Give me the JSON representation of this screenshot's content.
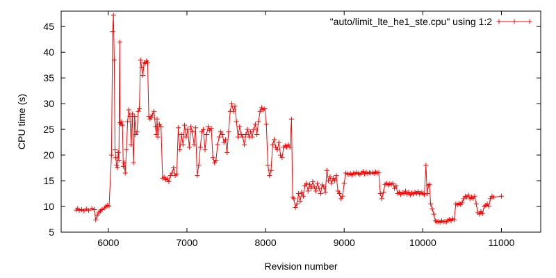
{
  "chart_data": {
    "type": "line",
    "title": "",
    "xlabel": "Revision number",
    "ylabel": "CPU time (s)",
    "xlim": [
      5400,
      11500
    ],
    "ylim": [
      5,
      48
    ],
    "xticks": [
      6000,
      7000,
      8000,
      9000,
      10000,
      11000
    ],
    "yticks": [
      5,
      10,
      15,
      20,
      25,
      30,
      35,
      40,
      45
    ],
    "grid": false,
    "legend_position": "top-right",
    "series": [
      {
        "name": "\"auto/limit_lte_he1_ste.cpu\" using 1:2",
        "color": "#ff0000",
        "marker": "plus",
        "points": [
          [
            5590,
            9.3
          ],
          [
            5610,
            9.6
          ],
          [
            5630,
            9.2
          ],
          [
            5660,
            9.4
          ],
          [
            5690,
            9.1
          ],
          [
            5720,
            9.5
          ],
          [
            5750,
            9.2
          ],
          [
            5790,
            9.6
          ],
          [
            5820,
            9.4
          ],
          [
            5840,
            7.4
          ],
          [
            5860,
            8.3
          ],
          [
            5880,
            8.9
          ],
          [
            5900,
            9.1
          ],
          [
            5920,
            9.4
          ],
          [
            5950,
            9.7
          ],
          [
            5970,
            10.0
          ],
          [
            5990,
            10.2
          ],
          [
            6010,
            10.1
          ],
          [
            6040,
            20.0
          ],
          [
            6055,
            44.0
          ],
          [
            6065,
            47.2
          ],
          [
            6075,
            38.5
          ],
          [
            6085,
            21.0
          ],
          [
            6095,
            19.5
          ],
          [
            6105,
            18.0
          ],
          [
            6115,
            17.5
          ],
          [
            6125,
            20.5
          ],
          [
            6135,
            19.0
          ],
          [
            6145,
            42.0
          ],
          [
            6150,
            26.3
          ],
          [
            6160,
            26.0
          ],
          [
            6170,
            26.5
          ],
          [
            6180,
            25.8
          ],
          [
            6190,
            17.8
          ],
          [
            6200,
            18.5
          ],
          [
            6215,
            16.5
          ],
          [
            6230,
            21.0
          ],
          [
            6245,
            26.5
          ],
          [
            6260,
            28.8
          ],
          [
            6275,
            27.5
          ],
          [
            6290,
            22.0
          ],
          [
            6305,
            28.0
          ],
          [
            6320,
            18.5
          ],
          [
            6335,
            27.5
          ],
          [
            6350,
            24.0
          ],
          [
            6365,
            24.5
          ],
          [
            6380,
            28.5
          ],
          [
            6395,
            29.0
          ],
          [
            6410,
            38.5
          ],
          [
            6425,
            37.0
          ],
          [
            6440,
            35.5
          ],
          [
            6455,
            38.0
          ],
          [
            6470,
            37.8
          ],
          [
            6485,
            38.3
          ],
          [
            6500,
            38.0
          ],
          [
            6515,
            27.5
          ],
          [
            6530,
            27.0
          ],
          [
            6545,
            27.3
          ],
          [
            6560,
            27.8
          ],
          [
            6580,
            28.5
          ],
          [
            6600,
            25.5
          ],
          [
            6610,
            24.0
          ],
          [
            6620,
            27.0
          ],
          [
            6630,
            23.5
          ],
          [
            6650,
            26.0
          ],
          [
            6670,
            25.5
          ],
          [
            6690,
            15.5
          ],
          [
            6710,
            15.7
          ],
          [
            6730,
            15.2
          ],
          [
            6750,
            15.4
          ],
          [
            6770,
            14.8
          ],
          [
            6790,
            16.0
          ],
          [
            6810,
            16.5
          ],
          [
            6830,
            17.5
          ],
          [
            6850,
            16.0
          ],
          [
            6870,
            16.3
          ],
          [
            6890,
            25.3
          ],
          [
            6910,
            21.0
          ],
          [
            6930,
            24.0
          ],
          [
            6950,
            22.0
          ],
          [
            6970,
            25.8
          ],
          [
            6990,
            23.5
          ],
          [
            7010,
            25.0
          ],
          [
            7030,
            21.5
          ],
          [
            7050,
            25.5
          ],
          [
            7070,
            24.5
          ],
          [
            7090,
            22.0
          ],
          [
            7110,
            25.3
          ],
          [
            7130,
            16.0
          ],
          [
            7150,
            18.0
          ],
          [
            7170,
            21.5
          ],
          [
            7190,
            24.5
          ],
          [
            7210,
            25.0
          ],
          [
            7230,
            21.0
          ],
          [
            7250,
            24.0
          ],
          [
            7270,
            25.5
          ],
          [
            7290,
            24.8
          ],
          [
            7310,
            25.2
          ],
          [
            7330,
            19.5
          ],
          [
            7350,
            18.5
          ],
          [
            7370,
            19.0
          ],
          [
            7390,
            22.0
          ],
          [
            7410,
            23.5
          ],
          [
            7430,
            24.5
          ],
          [
            7450,
            24.0
          ],
          [
            7470,
            22.5
          ],
          [
            7490,
            23.0
          ],
          [
            7510,
            20.5
          ],
          [
            7530,
            24.5
          ],
          [
            7550,
            28.5
          ],
          [
            7570,
            30.0
          ],
          [
            7590,
            28.5
          ],
          [
            7610,
            29.5
          ],
          [
            7630,
            26.5
          ],
          [
            7650,
            23.5
          ],
          [
            7670,
            25.5
          ],
          [
            7690,
            24.0
          ],
          [
            7710,
            23.5
          ],
          [
            7730,
            22.0
          ],
          [
            7750,
            24.0
          ],
          [
            7770,
            25.0
          ],
          [
            7790,
            23.5
          ],
          [
            7810,
            24.5
          ],
          [
            7830,
            23.5
          ],
          [
            7850,
            25.0
          ],
          [
            7870,
            26.0
          ],
          [
            7890,
            24.0
          ],
          [
            7910,
            26.5
          ],
          [
            7930,
            28.5
          ],
          [
            7950,
            29.2
          ],
          [
            7970,
            28.8
          ],
          [
            7990,
            29.0
          ],
          [
            8010,
            26.0
          ],
          [
            8030,
            18.0
          ],
          [
            8050,
            16.0
          ],
          [
            8070,
            17.0
          ],
          [
            8090,
            22.0
          ],
          [
            8110,
            23.0
          ],
          [
            8130,
            21.5
          ],
          [
            8150,
            21.0
          ],
          [
            8170,
            22.5
          ],
          [
            8190,
            20.0
          ],
          [
            8210,
            19.5
          ],
          [
            8230,
            21.5
          ],
          [
            8250,
            21.8
          ],
          [
            8270,
            21.5
          ],
          [
            8290,
            22.0
          ],
          [
            8310,
            21.5
          ],
          [
            8330,
            27.0
          ],
          [
            8345,
            11.8
          ],
          [
            8360,
            11.5
          ],
          [
            8380,
            9.8
          ],
          [
            8400,
            10.5
          ],
          [
            8420,
            12.5
          ],
          [
            8440,
            11.0
          ],
          [
            8460,
            12.8
          ],
          [
            8480,
            12.0
          ],
          [
            8500,
            14.0
          ],
          [
            8520,
            14.5
          ],
          [
            8540,
            13.0
          ],
          [
            8560,
            14.3
          ],
          [
            8580,
            13.5
          ],
          [
            8600,
            14.8
          ],
          [
            8620,
            13.8
          ],
          [
            8640,
            13.0
          ],
          [
            8660,
            14.5
          ],
          [
            8680,
            13.5
          ],
          [
            8700,
            12.5
          ],
          [
            8720,
            14.2
          ],
          [
            8740,
            13.8
          ],
          [
            8760,
            12.8
          ],
          [
            8780,
            17.0
          ],
          [
            8800,
            15.0
          ],
          [
            8820,
            15.8
          ],
          [
            8840,
            14.5
          ],
          [
            8860,
            15.5
          ],
          [
            8880,
            15.0
          ],
          [
            8900,
            16.0
          ],
          [
            8920,
            13.0
          ],
          [
            8940,
            12.5
          ],
          [
            8960,
            11.5
          ],
          [
            8980,
            12.0
          ],
          [
            9000,
            14.5
          ],
          [
            9020,
            16.5
          ],
          [
            9040,
            16.3
          ],
          [
            9060,
            16.2
          ],
          [
            9080,
            16.4
          ],
          [
            9100,
            16.1
          ],
          [
            9120,
            16.5
          ],
          [
            9140,
            16.3
          ],
          [
            9160,
            16.6
          ],
          [
            9180,
            16.4
          ],
          [
            9200,
            16.2
          ],
          [
            9220,
            16.5
          ],
          [
            9240,
            16.8
          ],
          [
            9260,
            16.3
          ],
          [
            9280,
            16.7
          ],
          [
            9300,
            16.4
          ],
          [
            9320,
            16.6
          ],
          [
            9340,
            16.5
          ],
          [
            9360,
            16.6
          ],
          [
            9380,
            16.4
          ],
          [
            9400,
            16.7
          ],
          [
            9420,
            16.5
          ],
          [
            9440,
            16.6
          ],
          [
            9460,
            12.5
          ],
          [
            9480,
            11.5
          ],
          [
            9500,
            12.8
          ],
          [
            9520,
            14.3
          ],
          [
            9540,
            14.5
          ],
          [
            9560,
            14.2
          ],
          [
            9580,
            14.4
          ],
          [
            9600,
            14.3
          ],
          [
            9620,
            14.5
          ],
          [
            9640,
            13.5
          ],
          [
            9660,
            14.0
          ],
          [
            9680,
            12.5
          ],
          [
            9700,
            12.8
          ],
          [
            9720,
            12.3
          ],
          [
            9740,
            12.7
          ],
          [
            9760,
            12.5
          ],
          [
            9780,
            13.0
          ],
          [
            9800,
            12.4
          ],
          [
            9820,
            12.8
          ],
          [
            9840,
            12.2
          ],
          [
            9860,
            12.6
          ],
          [
            9880,
            12.4
          ],
          [
            9900,
            12.8
          ],
          [
            9920,
            12.5
          ],
          [
            9940,
            12.9
          ],
          [
            9960,
            12.4
          ],
          [
            9980,
            12.7
          ],
          [
            10000,
            12.5
          ],
          [
            10020,
            12.3
          ],
          [
            10040,
            18.0
          ],
          [
            10055,
            12.5
          ],
          [
            10070,
            14.0
          ],
          [
            10085,
            14.3
          ],
          [
            10100,
            10.5
          ],
          [
            10120,
            9.5
          ],
          [
            10140,
            8.5
          ],
          [
            10160,
            7.2
          ],
          [
            10180,
            7.0
          ],
          [
            10200,
            7.1
          ],
          [
            10220,
            6.9
          ],
          [
            10240,
            7.2
          ],
          [
            10260,
            7.0
          ],
          [
            10280,
            7.1
          ],
          [
            10300,
            7.0
          ],
          [
            10320,
            7.3
          ],
          [
            10340,
            7.5
          ],
          [
            10360,
            7.2
          ],
          [
            10380,
            7.6
          ],
          [
            10400,
            7.4
          ],
          [
            10420,
            10.5
          ],
          [
            10440,
            10.3
          ],
          [
            10460,
            10.6
          ],
          [
            10480,
            10.4
          ],
          [
            10500,
            10.7
          ],
          [
            10520,
            11.5
          ],
          [
            10540,
            12.0
          ],
          [
            10560,
            11.8
          ],
          [
            10580,
            12.2
          ],
          [
            10600,
            11.5
          ],
          [
            10620,
            11.8
          ],
          [
            10640,
            11.6
          ],
          [
            10660,
            12.0
          ],
          [
            10680,
            10.5
          ],
          [
            10700,
            8.8
          ],
          [
            10720,
            8.5
          ],
          [
            10740,
            9.0
          ],
          [
            10760,
            8.6
          ],
          [
            10780,
            10.0
          ],
          [
            10800,
            10.2
          ],
          [
            10820,
            10.5
          ],
          [
            10840,
            10.0
          ],
          [
            10860,
            11.5
          ],
          [
            10880,
            12.0
          ],
          [
            10900,
            11.8
          ],
          [
            11000,
            12.0
          ]
        ]
      }
    ]
  }
}
